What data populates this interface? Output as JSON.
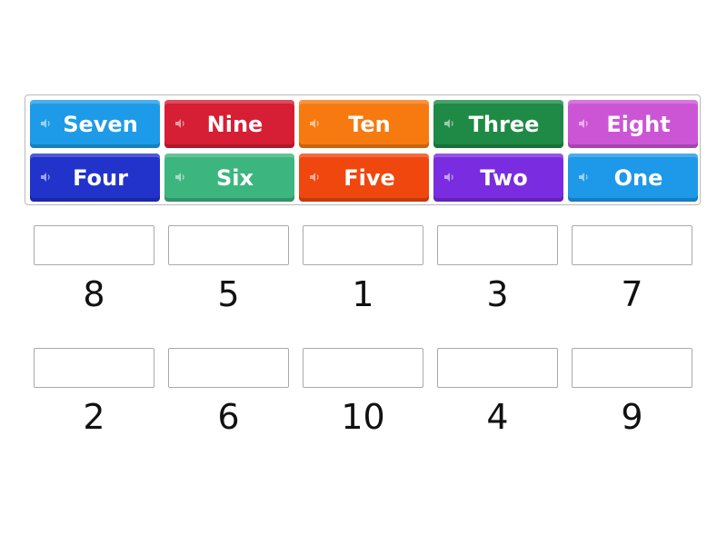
{
  "tiles": [
    {
      "label": "Seven",
      "color": "#1e9be8",
      "icon": "speaker-icon"
    },
    {
      "label": "Nine",
      "color": "#d61e35",
      "icon": "speaker-icon"
    },
    {
      "label": "Ten",
      "color": "#f77a10",
      "icon": "speaker-icon"
    },
    {
      "label": "Three",
      "color": "#1f8a45",
      "icon": "speaker-icon"
    },
    {
      "label": "Eight",
      "color": "#cc55d6",
      "icon": "speaker-icon"
    },
    {
      "label": "Four",
      "color": "#2233cc",
      "icon": "speaker-icon"
    },
    {
      "label": "Six",
      "color": "#3db57f",
      "icon": "speaker-icon"
    },
    {
      "label": "Five",
      "color": "#f0470f",
      "icon": "speaker-icon"
    },
    {
      "label": "Two",
      "color": "#7a2ce0",
      "icon": "speaker-icon"
    },
    {
      "label": "One",
      "color": "#1e98e8",
      "icon": "speaker-icon"
    }
  ],
  "targets": [
    {
      "label": "8"
    },
    {
      "label": "5"
    },
    {
      "label": "1"
    },
    {
      "label": "3"
    },
    {
      "label": "7"
    },
    {
      "label": "2"
    },
    {
      "label": "6"
    },
    {
      "label": "10"
    },
    {
      "label": "4"
    },
    {
      "label": "9"
    }
  ]
}
